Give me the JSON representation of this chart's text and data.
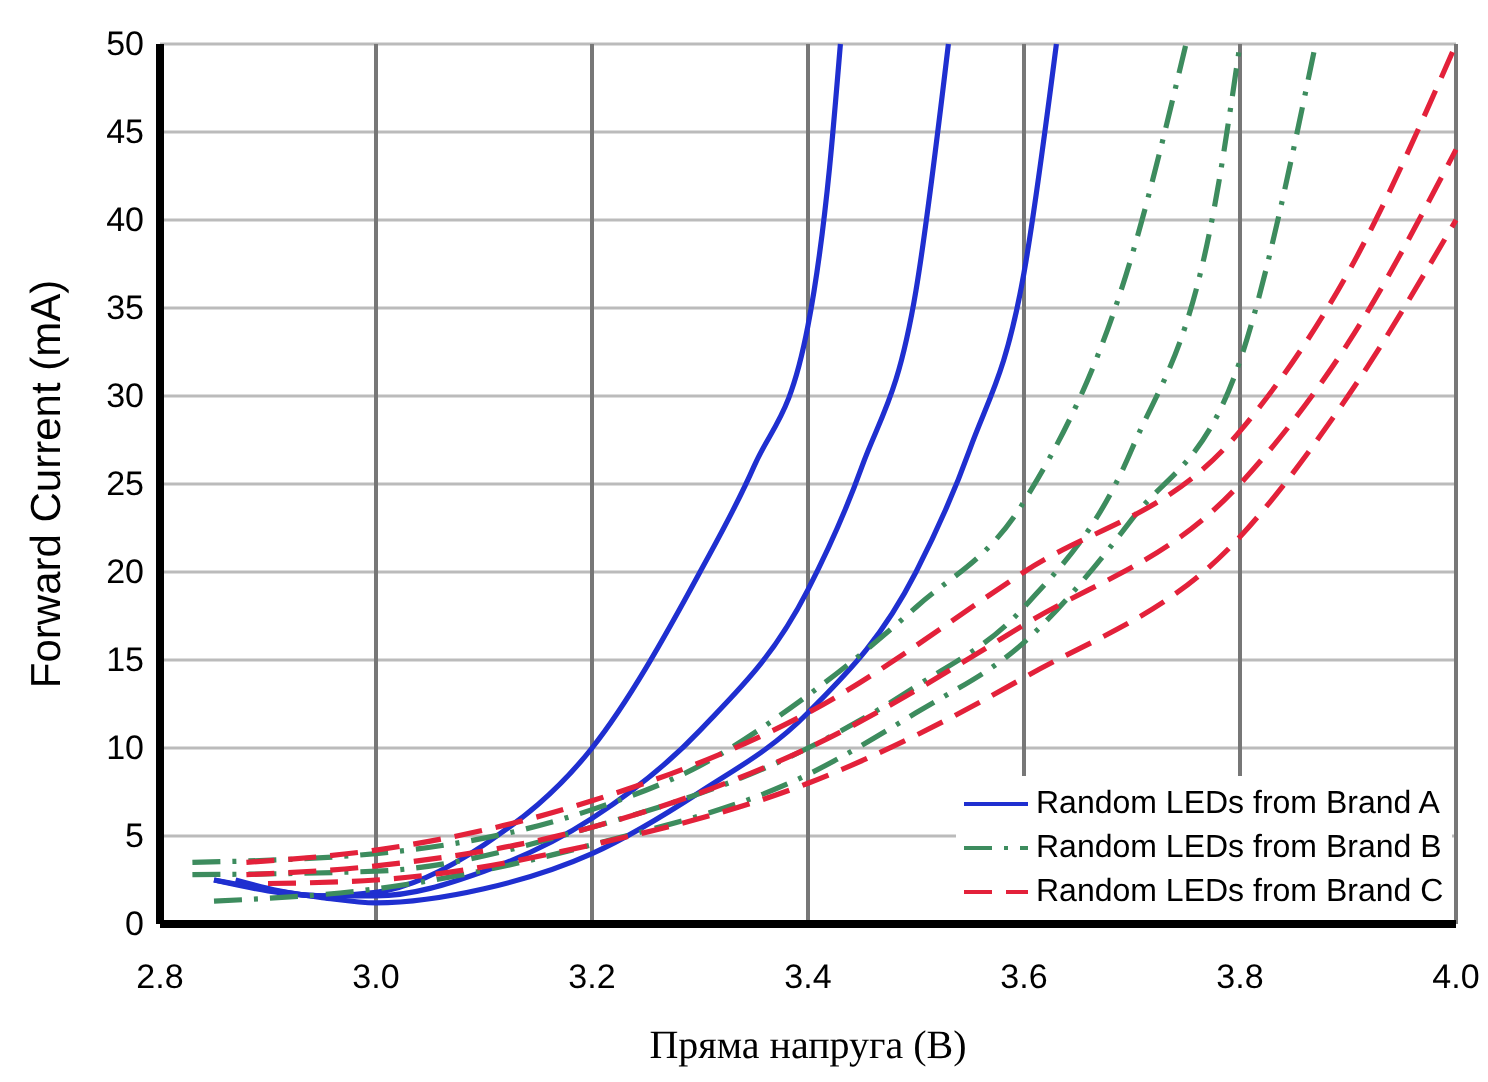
{
  "chart_data": {
    "type": "line",
    "xlabel": "Пряма напруга (В)",
    "ylabel": "Forward Current (mA)",
    "xlim": [
      2.8,
      4.0
    ],
    "xticks": [
      {
        "value": 2.8,
        "label": "2.8"
      },
      {
        "value": 3.0,
        "label": "3.0"
      },
      {
        "value": 3.2,
        "label": "3.2"
      },
      {
        "value": 3.4,
        "label": "3.4"
      },
      {
        "value": 3.6,
        "label": "3.6"
      },
      {
        "value": 3.8,
        "label": "3.8"
      },
      {
        "value": 4.0,
        "label": "4.0"
      }
    ],
    "ylim": [
      0,
      50
    ],
    "yticks": [
      0,
      5,
      10,
      15,
      20,
      25,
      30,
      35,
      40,
      45,
      50
    ],
    "grid": true,
    "legend": "bottom right",
    "series": [
      {
        "name": "Random LEDs from Brand A",
        "color": "#1f2fd0",
        "line_style": "solid",
        "x": [
          2.85,
          2.95,
          3.0,
          3.1,
          3.2,
          3.3,
          3.35,
          3.4,
          3.42,
          3.43
        ],
        "values": [
          2.5,
          1.6,
          1.8,
          4.5,
          10,
          20,
          26,
          34,
          43,
          50
        ]
      },
      {
        "color": "#1f2fd0",
        "line_style": "solid",
        "x": [
          2.87,
          2.95,
          3.0,
          3.1,
          3.2,
          3.3,
          3.4,
          3.45,
          3.5,
          3.53
        ],
        "values": [
          2.5,
          1.6,
          1.6,
          3,
          6,
          11,
          19,
          26,
          36,
          50
        ]
      },
      {
        "color": "#1f2fd0",
        "line_style": "solid",
        "x": [
          2.85,
          2.95,
          3.0,
          3.1,
          3.2,
          3.3,
          3.4,
          3.5,
          3.55,
          3.6,
          3.63
        ],
        "values": [
          2.5,
          1.5,
          1.2,
          2,
          4,
          7.5,
          12,
          20,
          27,
          37,
          50
        ]
      },
      {
        "name": "Random LEDs from Brand B",
        "color": "#3d8c5e",
        "line_style": "dashdot",
        "x": [
          2.83,
          3.0,
          3.2,
          3.3,
          3.4,
          3.5,
          3.6,
          3.7,
          3.75
        ],
        "values": [
          3.5,
          4,
          6.5,
          9,
          13,
          18,
          24,
          38,
          50
        ]
      },
      {
        "color": "#3d8c5e",
        "line_style": "dashdot",
        "x": [
          2.83,
          3.0,
          3.2,
          3.4,
          3.5,
          3.6,
          3.7,
          3.78,
          3.8
        ],
        "values": [
          2.8,
          3,
          5.5,
          10,
          13.5,
          18,
          27,
          42,
          50
        ]
      },
      {
        "color": "#3d8c5e",
        "line_style": "dashdot",
        "x": [
          2.85,
          3.0,
          3.2,
          3.4,
          3.5,
          3.6,
          3.7,
          3.8,
          3.87
        ],
        "values": [
          1.3,
          2,
          4.5,
          8.5,
          12,
          16,
          23,
          32,
          50
        ]
      },
      {
        "name": "Random LEDs from Brand C",
        "color": "#e3213a",
        "line_style": "dashed",
        "x": [
          2.88,
          3.0,
          3.2,
          3.4,
          3.6,
          3.8,
          3.9,
          4.0
        ],
        "values": [
          3.5,
          4.2,
          7,
          12,
          20,
          28,
          37,
          50
        ]
      },
      {
        "color": "#e3213a",
        "line_style": "dashed",
        "x": [
          2.88,
          3.0,
          3.2,
          3.4,
          3.6,
          3.8,
          3.9,
          4.0
        ],
        "values": [
          2.8,
          3.3,
          5.5,
          10,
          17,
          25,
          33,
          44
        ]
      },
      {
        "color": "#e3213a",
        "line_style": "dashed",
        "x": [
          2.9,
          3.0,
          3.2,
          3.4,
          3.6,
          3.8,
          3.9,
          4.0
        ],
        "values": [
          2.3,
          2.5,
          4.5,
          8,
          14,
          22,
          30,
          40
        ]
      }
    ]
  }
}
